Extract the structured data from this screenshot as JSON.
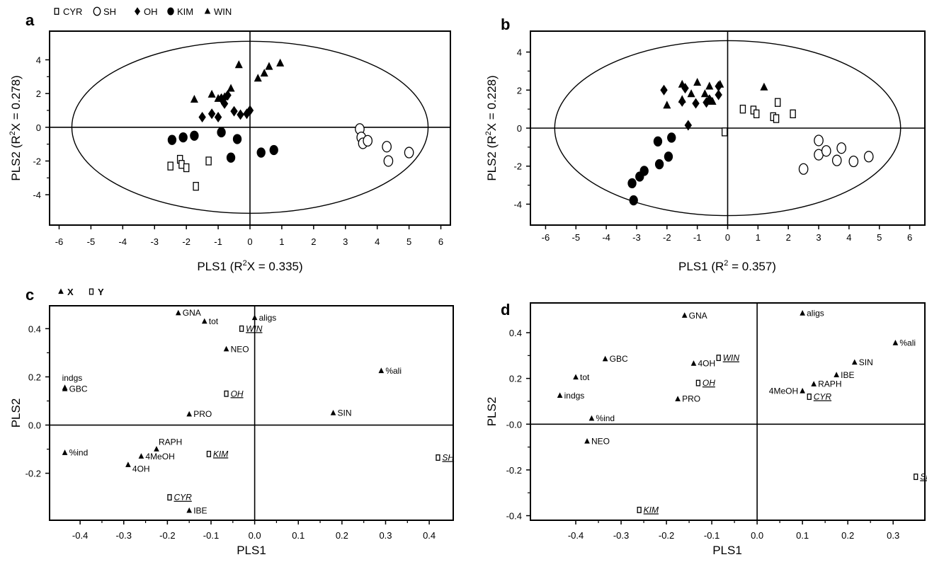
{
  "chart_data": [
    {
      "panel": "a",
      "type": "scatter",
      "xlabel": "PLS1 (R2X = 0.335)",
      "xlabel_main": "PLS1 (R",
      "xlabel_sup": "2",
      "xlabel_tail": "X = 0.335)",
      "ylabel": "PLS2 (R2X = 0.278)",
      "ylabel_main": "PLS2 (R",
      "ylabel_sup": "2",
      "ylabel_tail": "X = 0.278)",
      "xlim": [
        -6.3,
        6.3
      ],
      "ylim": [
        -5.8,
        5.7
      ],
      "xticks": [
        -6,
        -5,
        -4,
        -3,
        -2,
        -1,
        0,
        1,
        2,
        3,
        4,
        5,
        6
      ],
      "yticks": [
        -4,
        -2,
        0,
        2,
        4
      ],
      "ellipse": {
        "rx": 5.6,
        "ry": 5.1
      },
      "legend": [
        {
          "name": "CYR",
          "marker": "square-open"
        },
        {
          "name": "SH",
          "marker": "circle-open"
        },
        {
          "name": "OH",
          "marker": "diamond"
        },
        {
          "name": "KIM",
          "marker": "circle"
        },
        {
          "name": "WIN",
          "marker": "triangle"
        }
      ],
      "series": [
        {
          "name": "CYR",
          "marker": "square-open",
          "points": [
            [
              -2.5,
              -2.3
            ],
            [
              -2.2,
              -1.9
            ],
            [
              -2.15,
              -2.2
            ],
            [
              -2.0,
              -2.4
            ],
            [
              -1.7,
              -3.5
            ],
            [
              -1.3,
              -2.0
            ]
          ]
        },
        {
          "name": "SH",
          "marker": "circle-open",
          "points": [
            [
              3.45,
              -0.1
            ],
            [
              3.5,
              -0.6
            ],
            [
              3.55,
              -0.95
            ],
            [
              3.7,
              -0.8
            ],
            [
              4.3,
              -1.15
            ],
            [
              4.35,
              -2.0
            ],
            [
              5.0,
              -1.5
            ]
          ]
        },
        {
          "name": "OH",
          "marker": "diamond",
          "points": [
            [
              -1.5,
              0.6
            ],
            [
              -1.2,
              0.8
            ],
            [
              -1.0,
              0.6
            ],
            [
              -0.9,
              1.7
            ],
            [
              -0.8,
              1.4
            ],
            [
              -0.7,
              1.9
            ],
            [
              -0.5,
              0.95
            ],
            [
              -0.3,
              0.75
            ],
            [
              -0.1,
              0.8
            ],
            [
              0.0,
              1.0
            ]
          ]
        },
        {
          "name": "KIM",
          "marker": "circle",
          "points": [
            [
              -2.45,
              -0.75
            ],
            [
              -2.1,
              -0.6
            ],
            [
              -1.75,
              -0.5
            ],
            [
              -0.9,
              -0.3
            ],
            [
              -0.6,
              -1.8
            ],
            [
              -0.4,
              -0.7
            ],
            [
              0.35,
              -1.5
            ],
            [
              0.75,
              -1.35
            ]
          ]
        },
        {
          "name": "WIN",
          "marker": "triangle",
          "points": [
            [
              -1.75,
              1.65
            ],
            [
              -1.2,
              1.95
            ],
            [
              -1.0,
              1.7
            ],
            [
              -0.8,
              1.8
            ],
            [
              -0.6,
              2.3
            ],
            [
              -0.35,
              3.7
            ],
            [
              0.25,
              2.9
            ],
            [
              0.45,
              3.2
            ],
            [
              0.6,
              3.6
            ],
            [
              0.95,
              3.8
            ]
          ]
        }
      ]
    },
    {
      "panel": "b",
      "type": "scatter",
      "xlabel": "PLS1 (R2 = 0.357)",
      "xlabel_main": "PLS1 (R",
      "xlabel_sup": "2",
      "xlabel_tail": " = 0.357)",
      "ylabel": "PLS2 (R2X = 0.228)",
      "ylabel_main": "PLS2 (R",
      "ylabel_sup": "2",
      "ylabel_tail": "X = 0.228)",
      "xlim": [
        -6.5,
        6.5
      ],
      "ylim": [
        -5.1,
        5.1
      ],
      "xticks": [
        -6,
        -5,
        -4,
        -3,
        -2,
        -1,
        0,
        1,
        2,
        3,
        4,
        5,
        6
      ],
      "yticks": [
        -4,
        -2,
        0,
        2,
        4
      ],
      "ellipse": {
        "rx": 5.7,
        "ry": 4.6
      },
      "series": [
        {
          "name": "CYR",
          "marker": "square-open",
          "points": [
            [
              -0.1,
              -0.2
            ],
            [
              0.5,
              1.0
            ],
            [
              0.85,
              0.95
            ],
            [
              0.95,
              0.75
            ],
            [
              1.5,
              0.6
            ],
            [
              1.6,
              0.5
            ],
            [
              1.65,
              1.35
            ],
            [
              2.15,
              0.75
            ]
          ]
        },
        {
          "name": "SH",
          "marker": "circle-open",
          "points": [
            [
              2.5,
              -2.15
            ],
            [
              3.0,
              -0.65
            ],
            [
              3.0,
              -1.4
            ],
            [
              3.25,
              -1.2
            ],
            [
              3.6,
              -1.7
            ],
            [
              3.75,
              -1.05
            ],
            [
              4.15,
              -1.75
            ],
            [
              4.65,
              -1.5
            ]
          ]
        },
        {
          "name": "OH",
          "marker": "diamond",
          "points": [
            [
              -2.1,
              2.0
            ],
            [
              -1.5,
              1.4
            ],
            [
              -1.4,
              2.1
            ],
            [
              -1.05,
              1.3
            ],
            [
              -0.7,
              1.35
            ],
            [
              -0.6,
              1.5
            ],
            [
              -0.3,
              1.75
            ],
            [
              -0.3,
              2.2
            ],
            [
              -1.3,
              0.15
            ]
          ]
        },
        {
          "name": "KIM",
          "marker": "circle",
          "points": [
            [
              -3.15,
              -2.9
            ],
            [
              -3.1,
              -3.8
            ],
            [
              -2.9,
              -2.55
            ],
            [
              -2.75,
              -2.25
            ],
            [
              -2.25,
              -1.9
            ],
            [
              -1.95,
              -1.5
            ],
            [
              -1.85,
              -0.5
            ],
            [
              -2.3,
              -0.7
            ]
          ]
        },
        {
          "name": "WIN",
          "marker": "triangle",
          "points": [
            [
              -2.0,
              1.2
            ],
            [
              -1.5,
              1.5
            ],
            [
              -1.5,
              2.3
            ],
            [
              -1.2,
              1.8
            ],
            [
              -1.0,
              2.4
            ],
            [
              -0.75,
              1.8
            ],
            [
              -0.6,
              2.2
            ],
            [
              -0.5,
              1.4
            ],
            [
              -0.25,
              2.3
            ],
            [
              1.2,
              2.15
            ]
          ]
        }
      ]
    },
    {
      "panel": "c",
      "type": "scatter",
      "xlabel": "PLS1",
      "ylabel": "PLS2",
      "xlim": [
        -0.47,
        0.455
      ],
      "ylim": [
        -0.395,
        0.495
      ],
      "xticks": [
        -0.4,
        -0.3,
        -0.2,
        -0.1,
        0.0,
        0.1,
        0.2,
        0.3,
        0.4
      ],
      "xtick_labels": [
        "-0.4",
        "-0.3",
        "-0.2",
        "-0.1",
        "0.0",
        "0.1",
        "0.2",
        "0.3",
        "0.4"
      ],
      "yticks": [
        -0.2,
        0.0,
        0.2,
        0.4
      ],
      "ytick_labels": [
        "-0.2",
        "0.0",
        "0.2",
        "0.4"
      ],
      "legend": [
        {
          "name": "X",
          "marker": "triangle"
        },
        {
          "name": "Y",
          "marker": "square-open"
        }
      ],
      "series": [
        {
          "name": "X",
          "marker": "triangle",
          "points": [
            {
              "x": -0.175,
              "y": 0.465,
              "label": "GNA",
              "pos": "right"
            },
            {
              "x": -0.115,
              "y": 0.43,
              "label": "tot",
              "pos": "right"
            },
            {
              "x": 0.0,
              "y": 0.445,
              "label": "aligs",
              "pos": "right"
            },
            {
              "x": -0.065,
              "y": 0.315,
              "label": "NEO",
              "pos": "right"
            },
            {
              "x": -0.435,
              "y": 0.155,
              "label": "indgs",
              "pos": "above"
            },
            {
              "x": -0.435,
              "y": 0.15,
              "label": "GBC",
              "pos": "right"
            },
            {
              "x": 0.29,
              "y": 0.225,
              "label": "%ali",
              "pos": "right"
            },
            {
              "x": -0.15,
              "y": 0.045,
              "label": "PRO",
              "pos": "right"
            },
            {
              "x": 0.18,
              "y": 0.05,
              "label": "SIN",
              "pos": "right"
            },
            {
              "x": -0.435,
              "y": -0.115,
              "label": "%ind",
              "pos": "right"
            },
            {
              "x": -0.225,
              "y": -0.1,
              "label": "RAPH",
              "pos": "above-right"
            },
            {
              "x": -0.26,
              "y": -0.13,
              "label": "4MeOH",
              "pos": "right"
            },
            {
              "x": -0.29,
              "y": -0.165,
              "label": "4OH",
              "pos": "below-right"
            },
            {
              "x": -0.15,
              "y": -0.355,
              "label": "IBE",
              "pos": "right"
            }
          ]
        },
        {
          "name": "Y",
          "marker": "square-open",
          "points": [
            {
              "x": -0.03,
              "y": 0.4,
              "label": "WIN",
              "pos": "right"
            },
            {
              "x": -0.065,
              "y": 0.13,
              "label": "OH",
              "pos": "right"
            },
            {
              "x": -0.105,
              "y": -0.12,
              "label": "KIM",
              "pos": "right"
            },
            {
              "x": 0.42,
              "y": -0.135,
              "label": "SH",
              "pos": "right"
            },
            {
              "x": -0.195,
              "y": -0.3,
              "label": "CYR",
              "pos": "right"
            }
          ]
        }
      ]
    },
    {
      "panel": "d",
      "type": "scatter",
      "xlabel": "PLS1",
      "ylabel": "PLS2",
      "xlim": [
        -0.5,
        0.37
      ],
      "ylim": [
        -0.42,
        0.53
      ],
      "xticks": [
        -0.4,
        -0.3,
        -0.2,
        -0.1,
        0.0,
        0.1,
        0.2,
        0.3
      ],
      "xtick_labels": [
        "-0.4",
        "-0.3",
        "-0.2",
        "-0.1",
        "0.0",
        "0.1",
        "0.2",
        "0.3"
      ],
      "yticks": [
        -0.4,
        -0.2,
        0.0,
        0.2,
        0.4
      ],
      "ytick_labels": [
        "-0.4",
        "-0.2",
        "-0.0",
        "0.2",
        "0.4"
      ],
      "series": [
        {
          "name": "X",
          "marker": "triangle",
          "points": [
            {
              "x": -0.16,
              "y": 0.475,
              "label": "GNA",
              "pos": "right"
            },
            {
              "x": 0.1,
              "y": 0.485,
              "label": "aligs",
              "pos": "right"
            },
            {
              "x": -0.335,
              "y": 0.285,
              "label": "GBC",
              "pos": "right"
            },
            {
              "x": 0.305,
              "y": 0.355,
              "label": "%ali",
              "pos": "right"
            },
            {
              "x": -0.4,
              "y": 0.205,
              "label": "tot",
              "pos": "right"
            },
            {
              "x": -0.14,
              "y": 0.265,
              "label": "4OH",
              "pos": "right"
            },
            {
              "x": 0.215,
              "y": 0.27,
              "label": "SIN",
              "pos": "right"
            },
            {
              "x": 0.175,
              "y": 0.215,
              "label": "IBE",
              "pos": "right"
            },
            {
              "x": 0.125,
              "y": 0.175,
              "label": "RAPH",
              "pos": "right"
            },
            {
              "x": 0.1,
              "y": 0.145,
              "label": "4MeOH",
              "pos": "left"
            },
            {
              "x": -0.435,
              "y": 0.125,
              "label": "indgs",
              "pos": "right"
            },
            {
              "x": -0.175,
              "y": 0.11,
              "label": "PRO",
              "pos": "right"
            },
            {
              "x": -0.365,
              "y": 0.025,
              "label": "%ind",
              "pos": "right"
            },
            {
              "x": -0.375,
              "y": -0.075,
              "label": "NEO",
              "pos": "right"
            }
          ]
        },
        {
          "name": "Y",
          "marker": "square-open",
          "points": [
            {
              "x": -0.085,
              "y": 0.29,
              "label": "WIN",
              "pos": "right"
            },
            {
              "x": -0.13,
              "y": 0.18,
              "label": "OH",
              "pos": "right"
            },
            {
              "x": 0.115,
              "y": 0.12,
              "label": "CYR",
              "pos": "right"
            },
            {
              "x": 0.35,
              "y": -0.23,
              "label": "SH",
              "pos": "right"
            },
            {
              "x": -0.26,
              "y": -0.375,
              "label": "KIM",
              "pos": "right"
            }
          ]
        }
      ]
    }
  ]
}
